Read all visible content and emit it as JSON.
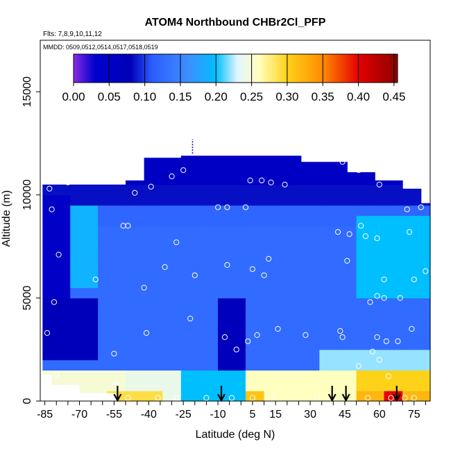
{
  "chart_data": {
    "type": "heatmap",
    "title": "ATOM4 Northbound CHBr2Cl_PFP",
    "subtitle_flights": "Flts: 7,8,9,10,11,12",
    "subtitle_dates": "MMDD: 0509,0512,0514,0517,0518,0519",
    "xlabel": "Latitude (deg N)",
    "ylabel": "Altitude (m)",
    "xlim": [
      -87,
      82
    ],
    "ylim": [
      0,
      17500
    ],
    "x_ticks": [
      -85,
      -70,
      -55,
      -40,
      -25,
      -10,
      5,
      15,
      30,
      45,
      60,
      75
    ],
    "y_ticks": [
      0,
      5000,
      10000,
      15000
    ],
    "colorbar": {
      "min": 0,
      "max": 0.455,
      "ticks": [
        "0.00",
        "0.05",
        "0.10",
        "0.15",
        "0.20",
        "0.25",
        "0.30",
        "0.35",
        "0.40",
        "0.45"
      ]
    },
    "colors": {
      "c000": "#8a2be2",
      "c003": "#0000cd",
      "c008": "#0000b8",
      "c011": "#2b5cff",
      "c016": "#3f8dff",
      "c020": "#00bfff",
      "c023": "#e0f5ff",
      "c026": "#ffffc0",
      "c030": "#ffd21a",
      "c035": "#ff8c00",
      "c040": "#e60000",
      "c045": "#8b0000"
    },
    "surface_arrows_lat": [
      -53.5,
      -8.5,
      39.5,
      45.5,
      67.5
    ],
    "grid_lats": [
      -86,
      -82,
      -78,
      -74,
      -70,
      -66,
      -62,
      -58,
      -54,
      -50,
      -46,
      -42,
      -38,
      -34,
      -30,
      -26,
      -22,
      -18,
      -14,
      -10,
      -6,
      -2,
      2,
      6,
      10,
      14,
      18,
      22,
      26,
      30,
      34,
      38,
      42,
      46,
      50,
      54,
      58,
      62,
      66,
      70,
      74,
      78
    ],
    "grid_alts": [
      0,
      500,
      1000,
      1500,
      2000,
      2500,
      3000,
      3500,
      4000,
      4500,
      5000,
      5500,
      6000,
      6500,
      7000,
      7500,
      8000,
      8500,
      9000,
      9500,
      10000,
      10500,
      11000,
      11500,
      12000
    ],
    "samples": [
      {
        "lat": -84,
        "alt": 3300
      },
      {
        "lat": -83,
        "alt": 10300
      },
      {
        "lat": -82,
        "alt": 9300
      },
      {
        "lat": -81,
        "alt": 4800
      },
      {
        "lat": -80,
        "alt": 1300
      },
      {
        "lat": -79,
        "alt": 7100
      },
      {
        "lat": -75,
        "alt": 10600
      },
      {
        "lat": -63,
        "alt": 5900
      },
      {
        "lat": -55,
        "alt": 2300
      },
      {
        "lat": -54,
        "alt": 800
      },
      {
        "lat": -51,
        "alt": 8500
      },
      {
        "lat": -49,
        "alt": 8500
      },
      {
        "lat": -46,
        "alt": 10100
      },
      {
        "lat": -42,
        "alt": 5500
      },
      {
        "lat": -41,
        "alt": 3300
      },
      {
        "lat": -39,
        "alt": 10400
      },
      {
        "lat": -33,
        "alt": 6500
      },
      {
        "lat": -28,
        "alt": 7700
      },
      {
        "lat": -25,
        "alt": 11200
      },
      {
        "lat": -22,
        "alt": 4000
      },
      {
        "lat": -30,
        "alt": 10900
      },
      {
        "lat": -20,
        "alt": 6100
      },
      {
        "lat": -10,
        "alt": 9400
      },
      {
        "lat": -7,
        "alt": 3100
      },
      {
        "lat": -6,
        "alt": 6600
      },
      {
        "lat": -6,
        "alt": 9400
      },
      {
        "lat": -2,
        "alt": 2500
      },
      {
        "lat": 2,
        "alt": 9400
      },
      {
        "lat": 3,
        "alt": 2900
      },
      {
        "lat": 4,
        "alt": 10700
      },
      {
        "lat": 5,
        "alt": 6400
      },
      {
        "lat": 7,
        "alt": 3200
      },
      {
        "lat": 9,
        "alt": 10700
      },
      {
        "lat": 10,
        "alt": 6100
      },
      {
        "lat": 12,
        "alt": 6900
      },
      {
        "lat": 13,
        "alt": 10600
      },
      {
        "lat": 16,
        "alt": 3500
      },
      {
        "lat": 19,
        "alt": 10500
      },
      {
        "lat": 28,
        "alt": 3200
      },
      {
        "lat": 42,
        "alt": 8200
      },
      {
        "lat": 43,
        "alt": 3400
      },
      {
        "lat": 44,
        "alt": 11600
      },
      {
        "lat": 44,
        "alt": 3100
      },
      {
        "lat": 46,
        "alt": 6800
      },
      {
        "lat": 47,
        "alt": 8100
      },
      {
        "lat": 51,
        "alt": 11200
      },
      {
        "lat": 52,
        "alt": 8500
      },
      {
        "lat": 51,
        "alt": 1700
      },
      {
        "lat": 54,
        "alt": 8000
      },
      {
        "lat": 56,
        "alt": 4800
      },
      {
        "lat": 57,
        "alt": 2400
      },
      {
        "lat": 59,
        "alt": 7900
      },
      {
        "lat": 59,
        "alt": 3100
      },
      {
        "lat": 59,
        "alt": 5100
      },
      {
        "lat": 60,
        "alt": 2000
      },
      {
        "lat": 60,
        "alt": 10500
      },
      {
        "lat": 62,
        "alt": 5000
      },
      {
        "lat": 62,
        "alt": 5900
      },
      {
        "lat": 63,
        "alt": 2900
      },
      {
        "lat": 64,
        "alt": 1200
      },
      {
        "lat": 66,
        "alt": 10900
      },
      {
        "lat": 68,
        "alt": 2900
      },
      {
        "lat": 69,
        "alt": 5000
      },
      {
        "lat": 71,
        "alt": 10900
      },
      {
        "lat": 72,
        "alt": 9300
      },
      {
        "lat": 73,
        "alt": 8200
      },
      {
        "lat": 74,
        "alt": 3500
      },
      {
        "lat": 75,
        "alt": 5900
      },
      {
        "lat": 78,
        "alt": 9400
      },
      {
        "lat": 80,
        "alt": 6300
      },
      {
        "lat": -49,
        "alt": 150
      },
      {
        "lat": -36,
        "alt": 150
      },
      {
        "lat": -28,
        "alt": 150
      },
      {
        "lat": -15,
        "alt": 150
      },
      {
        "lat": -4,
        "alt": 150
      },
      {
        "lat": 5,
        "alt": 150
      },
      {
        "lat": 13,
        "alt": 150
      },
      {
        "lat": 33,
        "alt": 150
      },
      {
        "lat": 55,
        "alt": 150
      },
      {
        "lat": 65,
        "alt": 150
      },
      {
        "lat": 71,
        "alt": 150
      },
      {
        "lat": 75,
        "alt": 150
      }
    ]
  }
}
